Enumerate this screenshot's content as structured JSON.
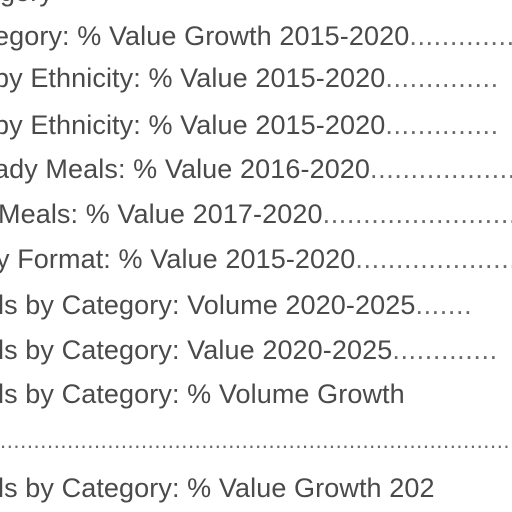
{
  "toc": {
    "top_fragment": "gory",
    "entries": [
      {
        "text": "egory: % Value Growth 2015-2020",
        "leader": "......................"
      },
      {
        "text": " by Ethnicity: % Value 2015-2020",
        "leader": ".............."
      },
      {
        "text": " by Ethnicity: % Value 2015-2020",
        "leader": ".............."
      },
      {
        "text": "ady Meals: % Value 2016-2020",
        "leader": "......................."
      },
      {
        "text": "Meals: % Value 2017-2020",
        "leader": "................................"
      },
      {
        "text": "y Format: % Value 2015-2020",
        "leader": ".........................."
      },
      {
        "text": "ls by Category: Volume 2020-2025",
        "leader": "......."
      },
      {
        "text": "ls by Category: Value 2020-2025",
        "leader": "............."
      },
      {
        "text": "ls by Category: % Volume Growth",
        "leader": ""
      },
      {
        "text": "",
        "leader": "...................................................................................."
      },
      {
        "text": "ls by Category: % Value Growth 202",
        "leader": ""
      }
    ]
  }
}
